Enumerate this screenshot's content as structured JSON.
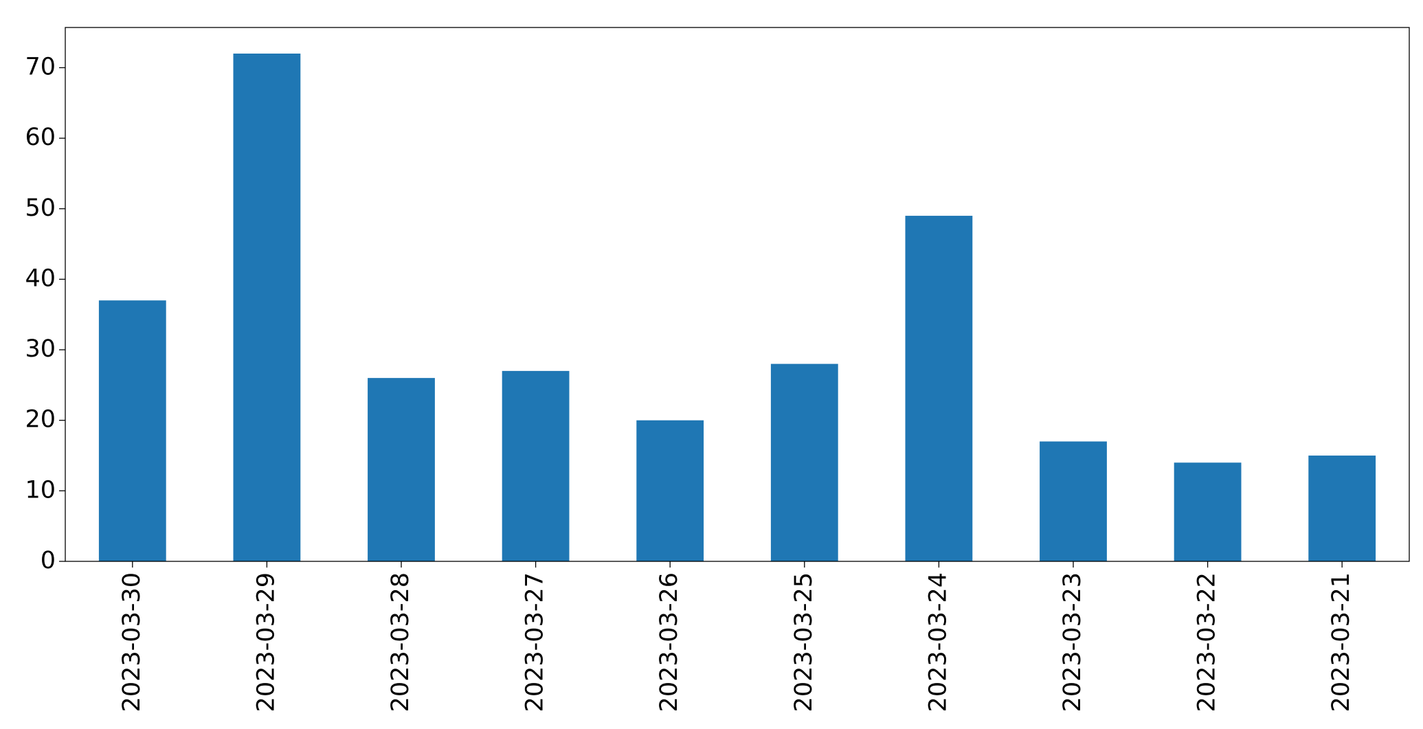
{
  "chart_data": {
    "type": "bar",
    "categories": [
      "2023-03-30",
      "2023-03-29",
      "2023-03-28",
      "2023-03-27",
      "2023-03-26",
      "2023-03-25",
      "2023-03-24",
      "2023-03-23",
      "2023-03-22",
      "2023-03-21"
    ],
    "values": [
      37,
      72,
      26,
      27,
      20,
      28,
      49,
      17,
      14,
      15
    ],
    "color": "#1f77b4",
    "ylim": [
      0,
      75.7
    ],
    "yticks": [
      0,
      10,
      20,
      30,
      40,
      50,
      60,
      70
    ],
    "grid": false
  }
}
